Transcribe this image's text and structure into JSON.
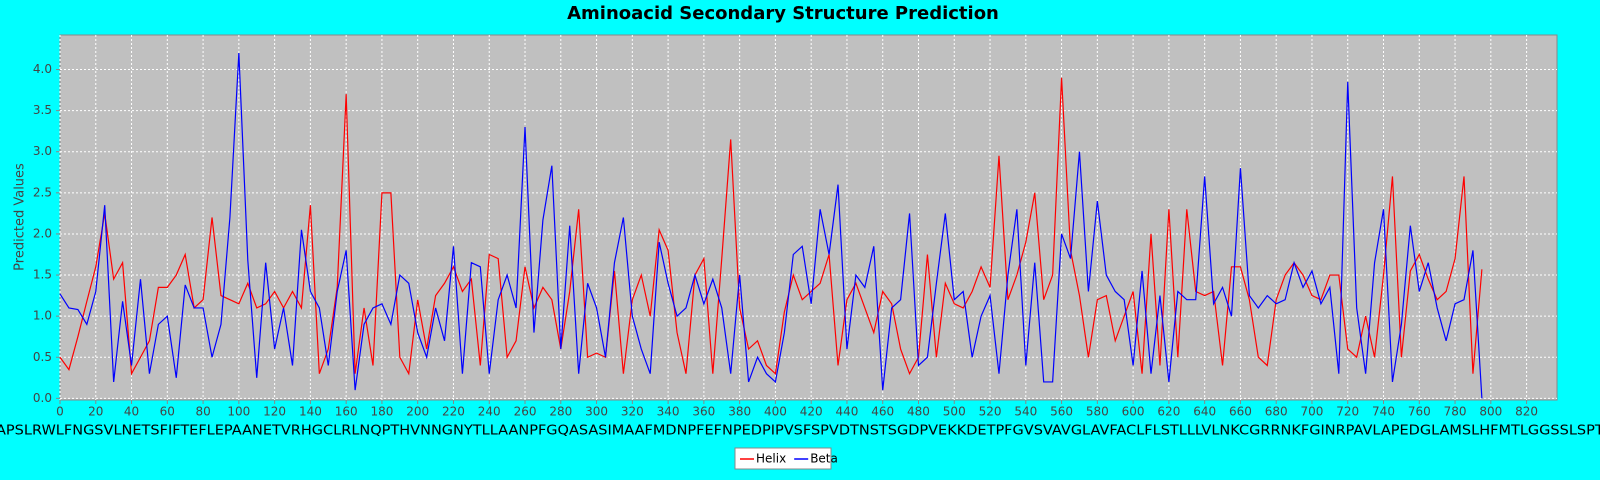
{
  "chart_data": {
    "type": "line",
    "title": "Aminoacid Secondary Structure Prediction",
    "y_label": "Predicted Values",
    "sequence": "APSLRWLFNGSVLNETSFIFTEFLEPAANETVRHGCLRLNQPTHVNNGNYTLLAANPFGQASASIMAAFMDNPFEFNPEDPIPVSFSPVDTNSTSGDPVEKKDETPFGVSVAVGLAVFACLFLSTLLLVLNKCGRRNKFGINRPAVLAPEDGLAMSLHFMTLGGSSLSPTI",
    "x": [
      0,
      5,
      10,
      15,
      20,
      25,
      30,
      35,
      40,
      45,
      50,
      55,
      60,
      65,
      70,
      75,
      80,
      85,
      90,
      95,
      100,
      105,
      110,
      115,
      120,
      125,
      130,
      135,
      140,
      145,
      150,
      155,
      160,
      165,
      170,
      175,
      180,
      185,
      190,
      195,
      200,
      205,
      210,
      215,
      220,
      225,
      230,
      235,
      240,
      245,
      250,
      255,
      260,
      265,
      270,
      275,
      280,
      285,
      290,
      295,
      300,
      305,
      310,
      315,
      320,
      325,
      330,
      335,
      340,
      345,
      350,
      355,
      360,
      365,
      370,
      375,
      380,
      385,
      390,
      395,
      400,
      405,
      410,
      415,
      420,
      425,
      430,
      435,
      440,
      445,
      450,
      455,
      460,
      465,
      470,
      475,
      480,
      485,
      490,
      495,
      500,
      505,
      510,
      515,
      520,
      525,
      530,
      535,
      540,
      545,
      550,
      555,
      560,
      565,
      570,
      575,
      580,
      585,
      590,
      595,
      600,
      605,
      610,
      615,
      620,
      625,
      630,
      635,
      640,
      645,
      650,
      655,
      660,
      665,
      670,
      675,
      680,
      685,
      690,
      695,
      700,
      705,
      710,
      715,
      720,
      725,
      730,
      735,
      740,
      745,
      750,
      755,
      760,
      765,
      770,
      775,
      780,
      785,
      790,
      795
    ],
    "series": [
      {
        "name": "Helix",
        "color": "#ff0000",
        "values": [
          0.5,
          0.35,
          0.75,
          1.18,
          1.6,
          2.25,
          1.45,
          1.65,
          0.3,
          0.5,
          0.7,
          1.35,
          1.35,
          1.5,
          1.75,
          1.1,
          1.2,
          2.2,
          1.25,
          1.2,
          1.15,
          1.4,
          1.1,
          1.15,
          1.3,
          1.1,
          1.3,
          1.1,
          2.35,
          0.3,
          0.6,
          1.35,
          3.7,
          0.3,
          1.1,
          0.4,
          2.5,
          2.5,
          0.5,
          0.3,
          1.2,
          0.6,
          1.25,
          1.4,
          1.6,
          1.3,
          1.45,
          0.4,
          1.75,
          1.7,
          0.5,
          0.7,
          1.6,
          1.1,
          1.35,
          1.2,
          0.6,
          1.3,
          2.3,
          0.5,
          0.55,
          0.5,
          1.55,
          0.3,
          1.2,
          1.5,
          1.0,
          2.05,
          1.8,
          0.8,
          0.3,
          1.5,
          1.7,
          0.3,
          1.7,
          3.15,
          1.1,
          0.6,
          0.7,
          0.4,
          0.3,
          1.05,
          1.5,
          1.2,
          1.3,
          1.4,
          1.75,
          0.4,
          1.2,
          1.4,
          1.1,
          0.8,
          1.3,
          1.15,
          0.6,
          0.3,
          0.5,
          1.75,
          0.5,
          1.4,
          1.15,
          1.1,
          1.3,
          1.6,
          1.35,
          2.95,
          1.2,
          1.5,
          1.9,
          2.5,
          1.2,
          1.5,
          3.9,
          1.8,
          1.25,
          0.5,
          1.2,
          1.25,
          0.7,
          1.0,
          1.3,
          0.3,
          2.0,
          0.4,
          2.3,
          0.5,
          2.3,
          1.3,
          1.25,
          1.3,
          0.4,
          1.6,
          1.6,
          1.2,
          0.5,
          0.4,
          1.2,
          1.5,
          1.65,
          1.5,
          1.25,
          1.2,
          1.5,
          1.5,
          0.6,
          0.5,
          1.0,
          0.5,
          1.5,
          2.7,
          0.5,
          1.55,
          1.75,
          1.45,
          1.2,
          1.3,
          1.7,
          2.7,
          0.3,
          1.57
        ]
      },
      {
        "name": "Beta",
        "color": "#0000ff",
        "values": [
          1.27,
          1.1,
          1.08,
          0.9,
          1.3,
          2.35,
          0.2,
          1.18,
          0.4,
          1.45,
          0.3,
          0.9,
          1.0,
          0.25,
          1.38,
          1.1,
          1.1,
          0.5,
          0.9,
          2.2,
          4.2,
          1.68,
          0.25,
          1.65,
          0.6,
          1.1,
          0.4,
          2.05,
          1.3,
          1.1,
          0.4,
          1.3,
          1.8,
          0.1,
          0.9,
          1.1,
          1.15,
          0.9,
          1.5,
          1.4,
          0.8,
          0.5,
          1.1,
          0.7,
          1.85,
          0.3,
          1.65,
          1.6,
          0.3,
          1.2,
          1.5,
          1.1,
          3.3,
          0.8,
          2.17,
          2.83,
          0.6,
          2.1,
          0.3,
          1.4,
          1.1,
          0.5,
          1.65,
          2.2,
          1.0,
          0.6,
          0.3,
          1.9,
          1.4,
          1.0,
          1.1,
          1.5,
          1.15,
          1.45,
          1.1,
          0.3,
          1.5,
          0.2,
          0.5,
          0.3,
          0.2,
          0.8,
          1.75,
          1.85,
          1.15,
          2.3,
          1.75,
          2.6,
          0.6,
          1.5,
          1.35,
          1.85,
          0.1,
          1.1,
          1.2,
          2.25,
          0.4,
          0.5,
          1.4,
          2.25,
          1.2,
          1.3,
          0.5,
          1.0,
          1.25,
          0.3,
          1.5,
          2.3,
          0.4,
          1.65,
          0.2,
          0.2,
          2.0,
          1.7,
          3.0,
          1.3,
          2.4,
          1.5,
          1.3,
          1.2,
          0.4,
          1.55,
          0.3,
          1.25,
          0.2,
          1.3,
          1.2,
          1.2,
          2.7,
          1.15,
          1.35,
          1.0,
          2.8,
          1.25,
          1.1,
          1.25,
          1.15,
          1.2,
          1.65,
          1.35,
          1.55,
          1.15,
          1.35,
          0.3,
          3.85,
          1.1,
          0.3,
          1.65,
          2.3,
          0.2,
          0.9,
          2.1,
          1.3,
          1.65,
          1.1,
          0.7,
          1.15,
          1.2,
          1.8,
          0.0
        ]
      }
    ],
    "xlim": [
      0,
      837
    ],
    "ylim": [
      -0.02,
      4.42
    ],
    "xticks": [
      0,
      20,
      40,
      60,
      80,
      100,
      120,
      140,
      160,
      180,
      200,
      220,
      240,
      260,
      280,
      300,
      320,
      340,
      360,
      380,
      400,
      420,
      440,
      460,
      480,
      500,
      520,
      540,
      560,
      580,
      600,
      620,
      640,
      660,
      680,
      700,
      720,
      740,
      760,
      780,
      800,
      820
    ],
    "yticks": [
      {
        "value": 0,
        "label": "0.0"
      },
      0.5,
      {
        "value": 1,
        "label": "1.0"
      },
      1.5,
      {
        "value": 2,
        "label": "2.0"
      },
      2.5,
      {
        "value": 3,
        "label": "3.0"
      },
      3.5,
      {
        "value": 4,
        "label": "4.0"
      }
    ],
    "grid": true,
    "legend": "bottom"
  }
}
